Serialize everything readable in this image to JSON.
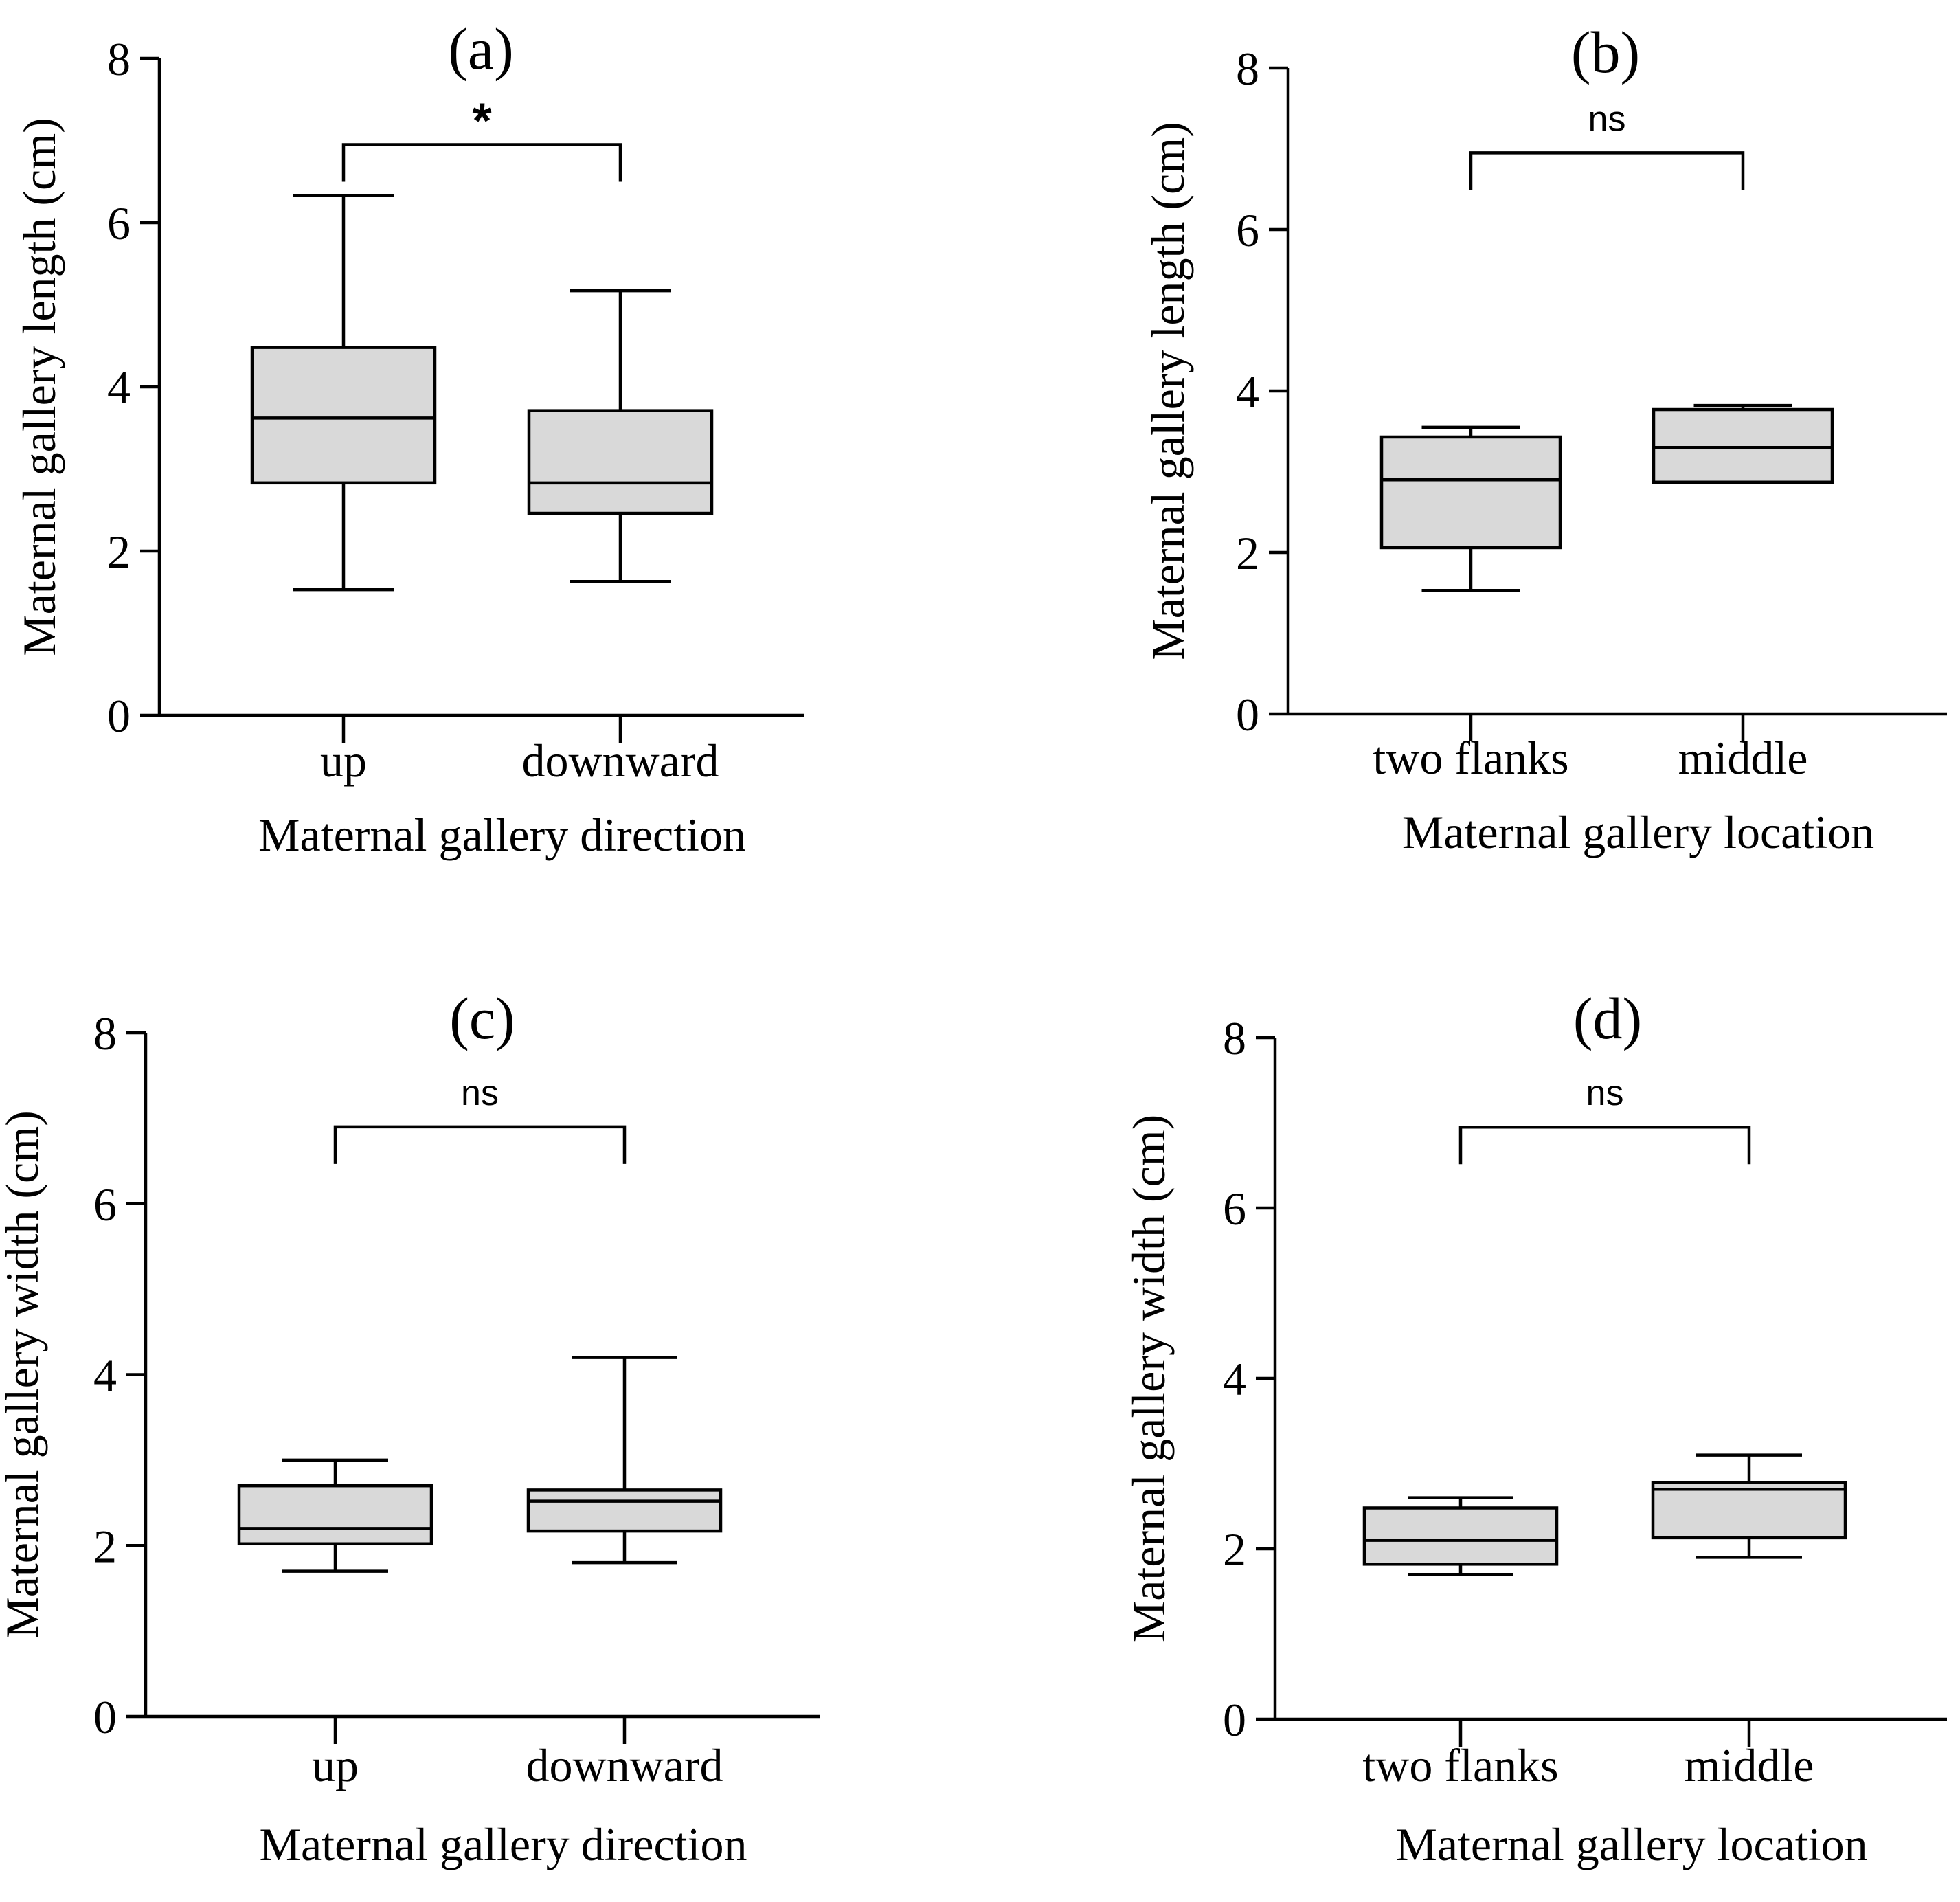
{
  "chart_data": [
    {
      "panel": "(a)",
      "type": "box",
      "xlabel": "Maternal gallery direction",
      "ylabel": "Maternal gallery length (cm)",
      "ylim": [
        0,
        8
      ],
      "yticks": [
        "0",
        "2",
        "4",
        "6",
        "8"
      ],
      "categories": [
        "up",
        "downward"
      ],
      "boxes": [
        {
          "min": 1.53,
          "q1": 2.83,
          "median": 3.62,
          "q3": 4.48,
          "max": 6.33
        },
        {
          "min": 1.63,
          "q1": 2.46,
          "median": 2.83,
          "q3": 3.71,
          "max": 5.17
        }
      ],
      "significance": {
        "label": "*",
        "pair": [
          0,
          1
        ],
        "y": 6.95
      }
    },
    {
      "panel": "(b)",
      "type": "box",
      "xlabel": "Maternal gallery location",
      "ylabel": "Maternal gallery length (cm)",
      "ylim": [
        0,
        8
      ],
      "yticks": [
        "0",
        "2",
        "4",
        "6",
        "8"
      ],
      "categories": [
        "two flanks",
        "middle"
      ],
      "boxes": [
        {
          "min": 1.53,
          "q1": 2.06,
          "median": 2.9,
          "q3": 3.43,
          "max": 3.55
        },
        {
          "min": 2.87,
          "q1": 2.87,
          "median": 3.3,
          "q3": 3.77,
          "max": 3.82
        }
      ],
      "significance": {
        "label": "ns",
        "pair": [
          0,
          1
        ],
        "y": 6.95
      }
    },
    {
      "panel": "(c)",
      "type": "box",
      "xlabel": "Maternal gallery direction",
      "ylabel": "Maternal gallery width (cm)",
      "ylim": [
        0,
        8
      ],
      "yticks": [
        "0",
        "2",
        "4",
        "6",
        "8"
      ],
      "categories": [
        "up",
        "downward"
      ],
      "boxes": [
        {
          "min": 1.7,
          "q1": 2.02,
          "median": 2.2,
          "q3": 2.7,
          "max": 3.0
        },
        {
          "min": 1.8,
          "q1": 2.17,
          "median": 2.52,
          "q3": 2.65,
          "max": 4.2
        }
      ],
      "significance": {
        "label": "ns",
        "pair": [
          0,
          1
        ],
        "y": 6.9
      }
    },
    {
      "panel": "(d)",
      "type": "box",
      "xlabel": "Maternal gallery location",
      "ylabel": "Maternal gallery width (cm)",
      "ylim": [
        0,
        8
      ],
      "yticks": [
        "0",
        "2",
        "4",
        "6",
        "8"
      ],
      "categories": [
        "two flanks",
        "middle"
      ],
      "boxes": [
        {
          "min": 1.7,
          "q1": 1.82,
          "median": 2.1,
          "q3": 2.48,
          "max": 2.6
        },
        {
          "min": 1.9,
          "q1": 2.13,
          "median": 2.7,
          "q3": 2.78,
          "max": 3.1
        }
      ],
      "significance": {
        "label": "ns",
        "pair": [
          0,
          1
        ],
        "y": 6.95
      }
    }
  ]
}
